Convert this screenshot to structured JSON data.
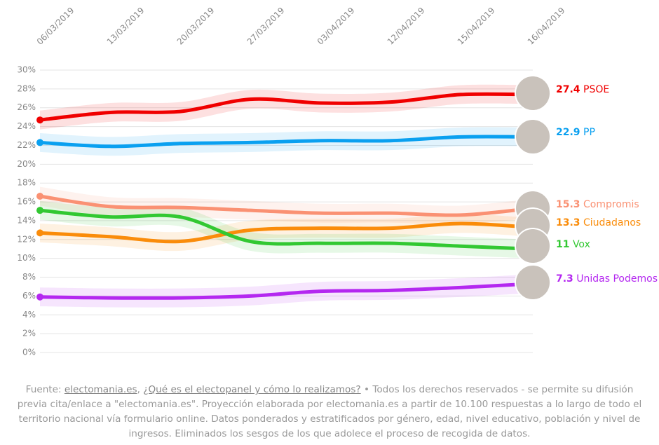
{
  "chart_data": {
    "type": "line",
    "categories": [
      "06/03/2019",
      "13/03/2019",
      "20/03/2019",
      "27/03/2019",
      "03/04/2019",
      "12/04/2019",
      "15/04/2019",
      "16/04/2019"
    ],
    "series": [
      {
        "name": "PSOE",
        "color": "#f00000",
        "values": [
          24.7,
          25.5,
          25.6,
          26.9,
          26.5,
          26.6,
          27.4,
          27.4
        ]
      },
      {
        "name": "PP",
        "color": "#0aa0f0",
        "values": [
          22.3,
          21.9,
          22.2,
          22.3,
          22.5,
          22.5,
          22.9,
          22.9
        ]
      },
      {
        "name": "Compromis",
        "color": "#fa9173",
        "values": [
          16.6,
          15.5,
          15.4,
          15.1,
          14.8,
          14.8,
          14.6,
          15.3
        ]
      },
      {
        "name": "Ciudadanos",
        "color": "#fa8c0a",
        "values": [
          12.7,
          12.3,
          11.8,
          13.0,
          13.2,
          13.2,
          13.7,
          13.3
        ]
      },
      {
        "name": "Vox",
        "color": "#32c832",
        "values": [
          15.1,
          14.4,
          14.4,
          11.8,
          11.6,
          11.6,
          11.3,
          11
        ]
      },
      {
        "name": "Unidas Podemos",
        "color": "#b428f0",
        "values": [
          5.9,
          5.8,
          5.8,
          6.0,
          6.5,
          6.6,
          6.9,
          7.3
        ]
      }
    ],
    "confidence_band": 1,
    "ylim": [
      0,
      30
    ],
    "yticks": [
      {
        "value": 0,
        "label": "0%"
      },
      {
        "value": 2,
        "label": "2%"
      },
      {
        "value": 4,
        "label": "4%"
      },
      {
        "value": 6,
        "label": "6%"
      },
      {
        "value": 8,
        "label": "8%"
      },
      {
        "value": 10,
        "label": "10%"
      },
      {
        "value": 12,
        "label": "12%"
      },
      {
        "value": 14,
        "label": "14%"
      },
      {
        "value": 16,
        "label": "16%"
      },
      {
        "value": 18,
        "label": "18%"
      },
      {
        "value": 20,
        "label": "20%"
      },
      {
        "value": 22,
        "label": "22%"
      },
      {
        "value": 24,
        "label": "24%"
      },
      {
        "value": 26,
        "label": "26%"
      },
      {
        "value": 28,
        "label": "28%"
      },
      {
        "value": 30,
        "label": "30%"
      }
    ],
    "grid": true
  },
  "footer": {
    "segments": [
      {
        "text": "Fuente: ",
        "link": false
      },
      {
        "text": "electomania.es",
        "link": true
      },
      {
        "text": ", ",
        "link": false
      },
      {
        "text": "¿Qué es el electopanel y cómo lo realizamos?",
        "link": true
      },
      {
        "text": " • Todos los derechos reservados - se permite su difusión previa cita/enlace a \"electomania.es\". Proyección elaborada por electomania.es a partir de 10.100 respuestas a lo largo de todo el territorio nacional vía formulario online. Datos ponderados y estratificados por género, edad, nivel educativo, población y nivel de ingresos. Eliminados los sesgos de los que adolece el proceso de recogida de datos.",
        "link": false
      }
    ]
  }
}
